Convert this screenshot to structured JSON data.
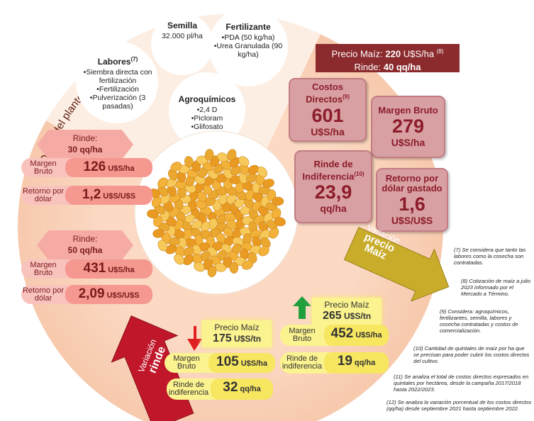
{
  "header": {
    "title": "Datos del planteo técnico"
  },
  "inputs": {
    "labores": {
      "title": "Labores",
      "note": "(7)",
      "items": [
        "•Siembra directa con fertilización",
        "•Fertilización",
        "•Pulverización (3 pasadas)"
      ]
    },
    "semilla": {
      "title": "Semilla",
      "items": [
        "32.000 pl/ha"
      ]
    },
    "fertilizante": {
      "title": "Fertilizante",
      "items": [
        "•PDA (50 kg/ha)",
        "•Urea Granulada (90 kg/ha)"
      ]
    },
    "agroquimicos": {
      "title": "Agroquímicos",
      "items": [
        "•2,4 D",
        "•Picloram",
        "•Glifosato"
      ]
    }
  },
  "base": {
    "price_label": "Precio Maíz:",
    "price": "220",
    "price_unit": "U$S/ha",
    "price_note": "(8)",
    "yield_label": "Rinde:",
    "yield": "40",
    "yield_unit": "qq/ha"
  },
  "results": [
    {
      "label": "Costos Directos",
      "note": "(9)",
      "value": "601",
      "unit": "U$S/ha"
    },
    {
      "label": "Margen Bruto",
      "value": "279",
      "unit": "U$S/ha"
    },
    {
      "label": "Rinde de Indiferencia",
      "note": "(10)",
      "value": "23,9",
      "unit": "qq/ha"
    },
    {
      "label": "Retorno por dólar gastado",
      "value": "1,6",
      "unit": "U$S/U$S"
    }
  ],
  "yield_variation": {
    "title": [
      "Variación",
      "rinde"
    ],
    "scenarios": [
      {
        "label": "Rinde:",
        "yield": "30 qq/ha",
        "rows": [
          {
            "label": "Margen Bruto",
            "value": "126",
            "unit": "U$S/ha"
          },
          {
            "label": "Retorno por dólar",
            "value": "1,2",
            "unit": "U$S/U$S"
          }
        ]
      },
      {
        "label": "Rinde:",
        "yield": "50 qq/ha",
        "rows": [
          {
            "label": "Margen Bruto",
            "value": "431",
            "unit": "U$S/ha"
          },
          {
            "label": "Retorno por dólar",
            "value": "2,09",
            "unit": "U$S/U$S"
          }
        ]
      }
    ]
  },
  "price_variation": {
    "title": [
      "Variación",
      "precio",
      "Maíz"
    ],
    "scenarios": [
      {
        "label": "Precio Maíz",
        "price": "175",
        "unit": "U$S/tn",
        "rows": [
          {
            "label": "Margen Bruto",
            "value": "105",
            "unit": "U$S/ha"
          },
          {
            "label": "Rinde de indiferencia",
            "value": "32",
            "unit": "qq/ha"
          }
        ]
      },
      {
        "label": "Precio Maíz",
        "price": "265",
        "unit": "U$S/tn",
        "rows": [
          {
            "label": "Margen Bruto",
            "value": "452",
            "unit": "U$S/ha"
          },
          {
            "label": "Rinde de indiferencia",
            "value": "19",
            "unit": "qq/ha"
          }
        ]
      }
    ]
  },
  "footnotes": [
    "(7) Se considera que tanto las labores como la cosecha son contratadas.",
    "(8) Cotización de maíz a julio 2023 informado por el Mercado a Término.",
    "(9) Considera: agroquímicos, fertilizantes, semilla, labores y cosecha contratadas y costos de comercialización.",
    "(10) Cantidad de quintales de maíz por ha que se precisan para poder cubrir los costos directos del cultivo.",
    "(11) Se analiza el total de costos directos expresados en quintales por hectárea, desde la campaña 2017/2018 hasta 2022/2023.",
    "(12) Se analiza la variación porcentual de los costos directos (qq/ha) desde septiembre 2021 hasta septiembre 2022."
  ]
}
